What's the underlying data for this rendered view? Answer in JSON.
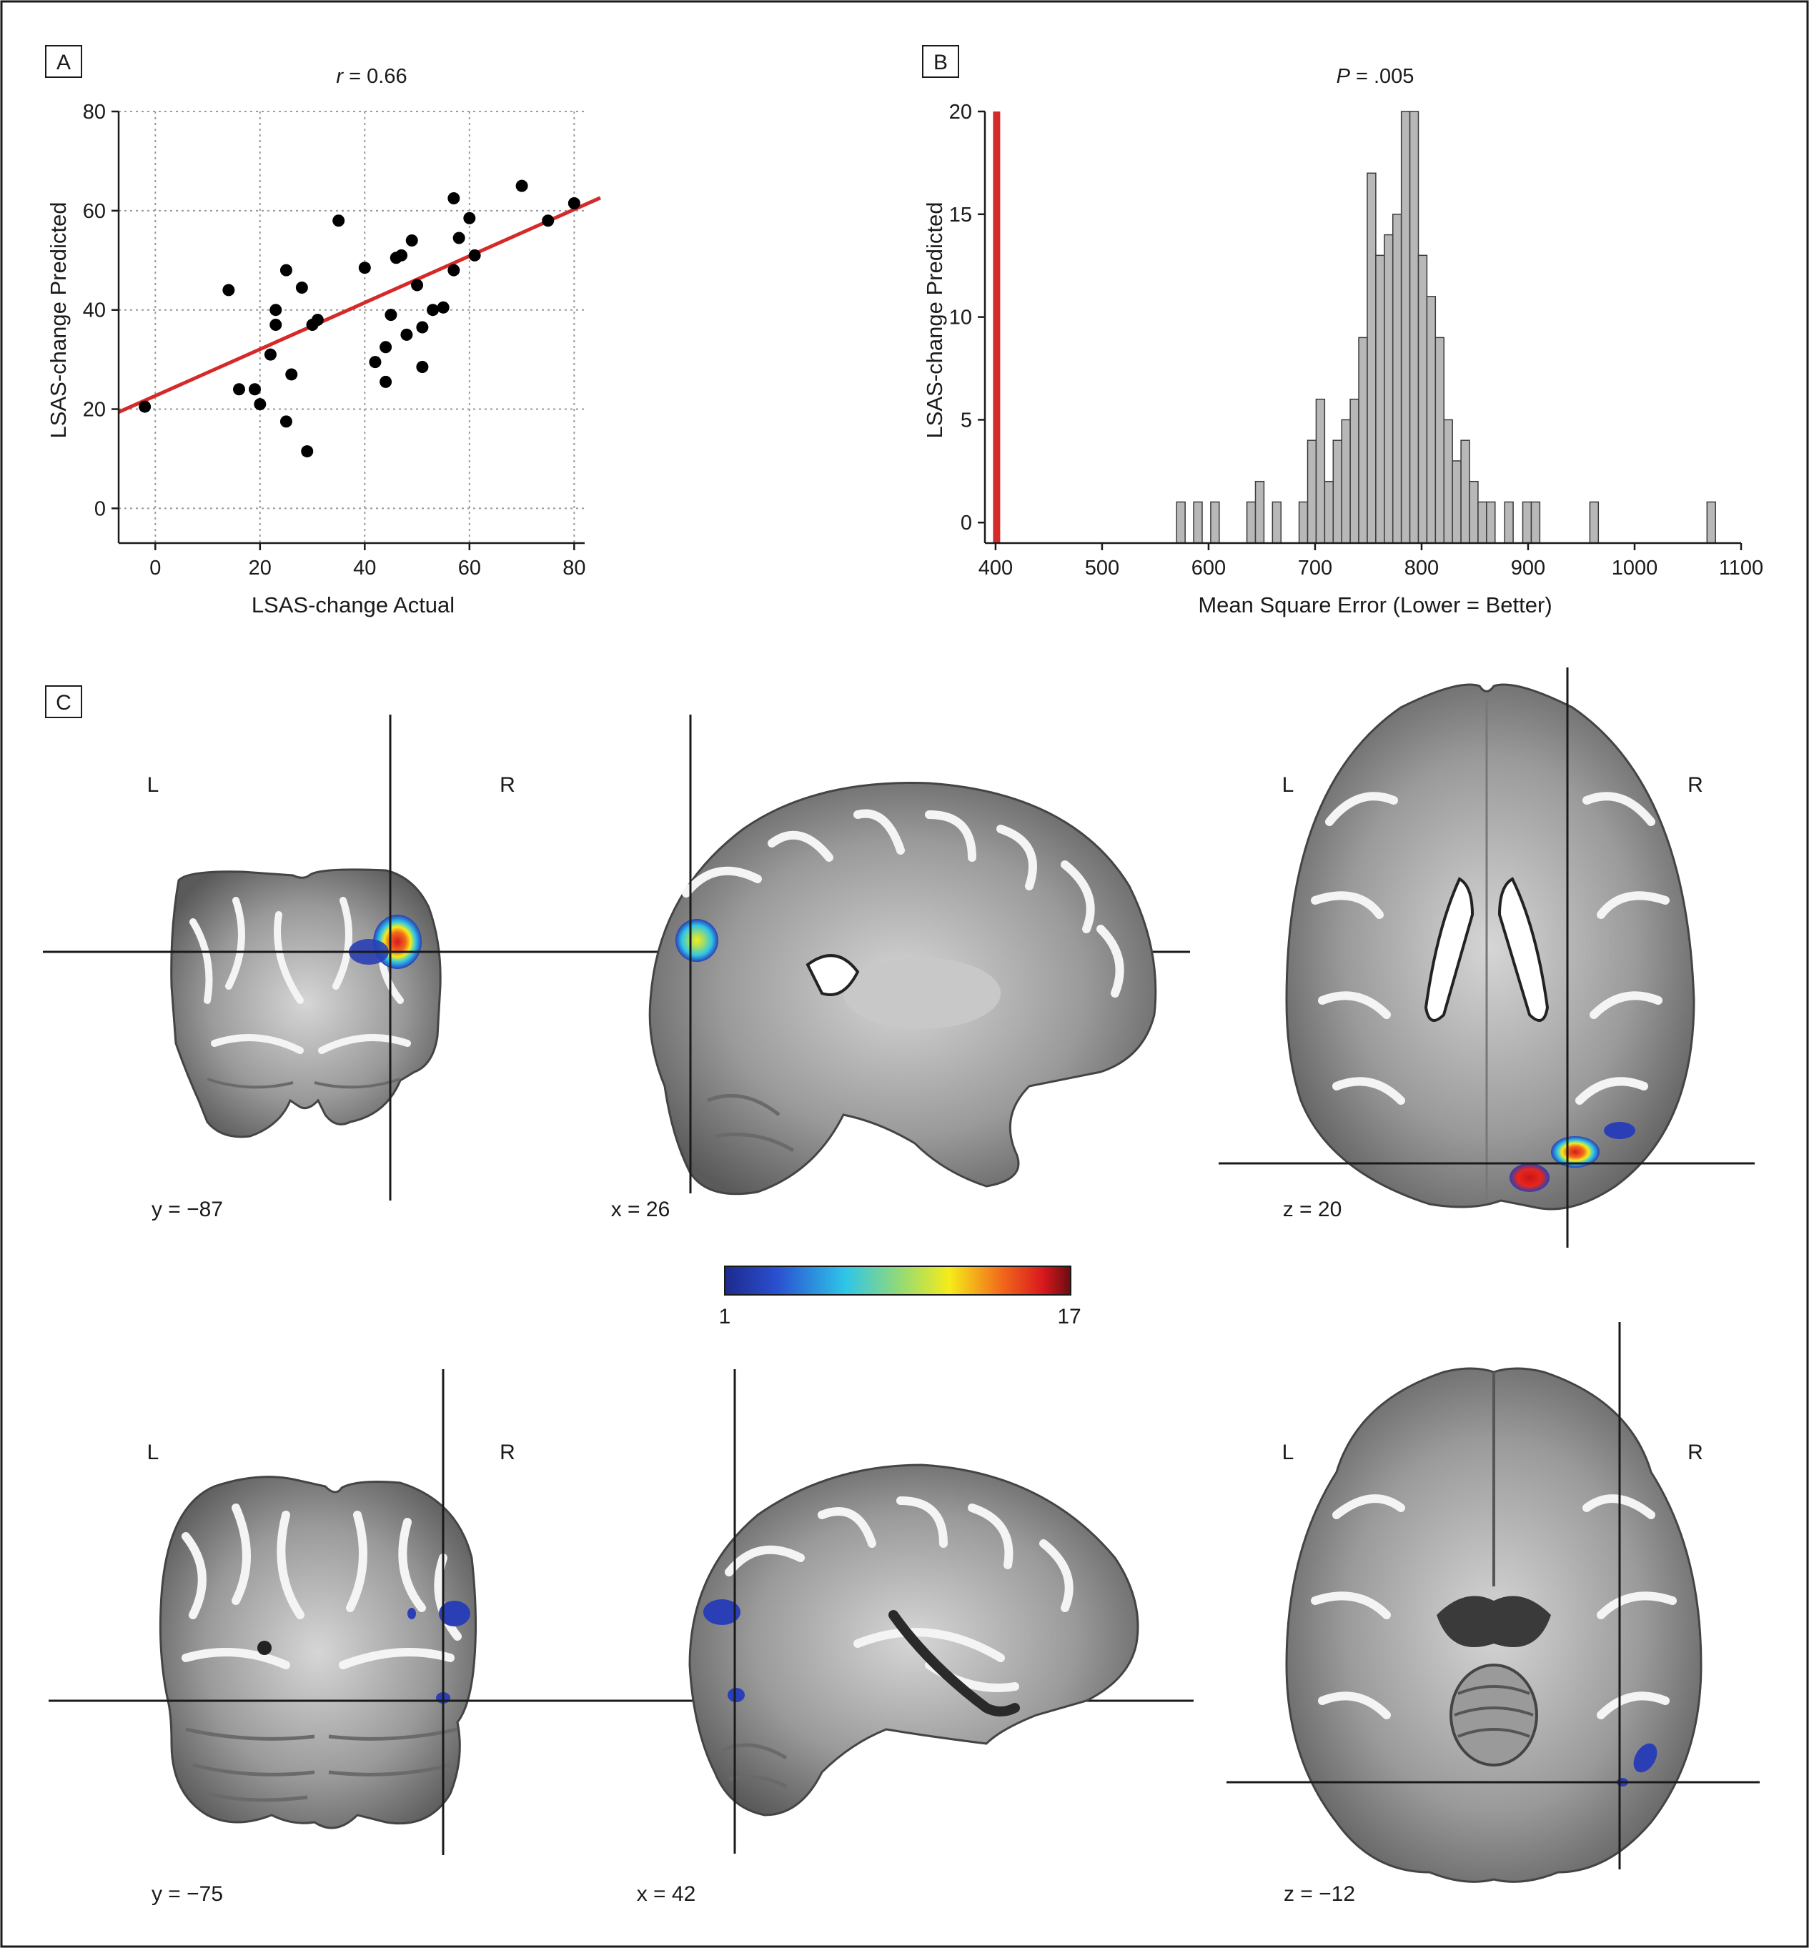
{
  "panel_labels": {
    "a": "A",
    "b": "B",
    "c": "C"
  },
  "chart_data": [
    {
      "type": "scatter",
      "panel": "A",
      "title_italic": "r",
      "title_rest": " = 0.66",
      "xlabel": "LSAS-change Actual",
      "ylabel": "LSAS-change Predicted",
      "xlim": [
        -7,
        82
      ],
      "ylim": [
        -7,
        80
      ],
      "xticks": [
        0,
        20,
        40,
        60,
        80
      ],
      "yticks": [
        0,
        20,
        40,
        60,
        80
      ],
      "grid": true,
      "line_color": "#d42a2a",
      "point_color": "#000000",
      "regression_line": {
        "x": [
          -7,
          85
        ],
        "y": [
          19.4,
          62.6
        ]
      },
      "points": [
        [
          -2,
          20.5
        ],
        [
          14,
          44
        ],
        [
          16,
          24
        ],
        [
          19,
          24
        ],
        [
          20,
          21
        ],
        [
          22,
          31
        ],
        [
          23,
          40
        ],
        [
          23,
          37
        ],
        [
          25,
          48
        ],
        [
          25,
          17.5
        ],
        [
          26,
          27
        ],
        [
          28,
          44.5
        ],
        [
          29,
          11.5
        ],
        [
          30,
          37
        ],
        [
          31,
          38
        ],
        [
          35,
          58
        ],
        [
          40,
          48.5
        ],
        [
          42,
          29.5
        ],
        [
          44,
          32.5
        ],
        [
          44,
          25.5
        ],
        [
          45,
          39
        ],
        [
          46,
          50.5
        ],
        [
          47,
          51
        ],
        [
          48,
          35
        ],
        [
          49,
          54
        ],
        [
          50,
          45
        ],
        [
          51,
          36.5
        ],
        [
          51,
          28.5
        ],
        [
          53,
          40
        ],
        [
          55,
          40.5
        ],
        [
          57,
          48
        ],
        [
          57,
          62.5
        ],
        [
          58,
          54.5
        ],
        [
          60,
          58.5
        ],
        [
          61,
          51
        ],
        [
          70,
          65
        ],
        [
          75,
          58
        ],
        [
          80,
          61.5
        ]
      ]
    },
    {
      "type": "bar",
      "subtype": "histogram",
      "panel": "B",
      "title_italic": "P",
      "title_rest": " = .005",
      "xlabel": "Mean Square Error (Lower = Better)",
      "ylabel": "LSAS-change Predicted",
      "xlim": [
        390,
        1100
      ],
      "ylim": [
        -1,
        20
      ],
      "xticks": [
        400,
        500,
        600,
        700,
        800,
        900,
        1000,
        1100
      ],
      "yticks": [
        0,
        5,
        10,
        15,
        20
      ],
      "bar_color": "#b8b8b8",
      "observed_line": {
        "x": 401,
        "color": "#d42a2a"
      },
      "bins": [
        {
          "x0": 570,
          "x1": 578,
          "count": 1
        },
        {
          "x0": 586,
          "x1": 594,
          "count": 1
        },
        {
          "x0": 602,
          "x1": 610,
          "count": 1
        },
        {
          "x0": 636,
          "x1": 644,
          "count": 1
        },
        {
          "x0": 644,
          "x1": 652,
          "count": 2
        },
        {
          "x0": 660,
          "x1": 668,
          "count": 1
        },
        {
          "x0": 685,
          "x1": 693,
          "count": 1
        },
        {
          "x0": 693,
          "x1": 701,
          "count": 4
        },
        {
          "x0": 701,
          "x1": 709,
          "count": 6
        },
        {
          "x0": 709,
          "x1": 717,
          "count": 2
        },
        {
          "x0": 717,
          "x1": 725,
          "count": 4
        },
        {
          "x0": 725,
          "x1": 733,
          "count": 5
        },
        {
          "x0": 733,
          "x1": 741,
          "count": 6
        },
        {
          "x0": 741,
          "x1": 749,
          "count": 9
        },
        {
          "x0": 749,
          "x1": 757,
          "count": 17
        },
        {
          "x0": 757,
          "x1": 765,
          "count": 13
        },
        {
          "x0": 765,
          "x1": 773,
          "count": 14
        },
        {
          "x0": 773,
          "x1": 781,
          "count": 15
        },
        {
          "x0": 781,
          "x1": 789,
          "count": 20
        },
        {
          "x0": 789,
          "x1": 797,
          "count": 20
        },
        {
          "x0": 797,
          "x1": 805,
          "count": 13
        },
        {
          "x0": 805,
          "x1": 813,
          "count": 11
        },
        {
          "x0": 813,
          "x1": 821,
          "count": 9
        },
        {
          "x0": 821,
          "x1": 829,
          "count": 5
        },
        {
          "x0": 829,
          "x1": 837,
          "count": 3
        },
        {
          "x0": 837,
          "x1": 845,
          "count": 4
        },
        {
          "x0": 845,
          "x1": 853,
          "count": 2
        },
        {
          "x0": 853,
          "x1": 861,
          "count": 1
        },
        {
          "x0": 861,
          "x1": 869,
          "count": 1
        },
        {
          "x0": 878,
          "x1": 886,
          "count": 1
        },
        {
          "x0": 895,
          "x1": 903,
          "count": 1
        },
        {
          "x0": 903,
          "x1": 911,
          "count": 1
        },
        {
          "x0": 958,
          "x1": 966,
          "count": 1
        },
        {
          "x0": 1068,
          "x1": 1076,
          "count": 1
        }
      ]
    }
  ],
  "panel_c": {
    "side_left": "L",
    "side_right": "R",
    "colorbar": {
      "min_label": "1",
      "max_label": "17"
    },
    "slices_row1": [
      {
        "view": "coronal",
        "coord": "y = −87"
      },
      {
        "view": "sagittal",
        "coord": "x = 26"
      },
      {
        "view": "axial",
        "coord": "z = 20"
      }
    ],
    "slices_row2": [
      {
        "view": "coronal",
        "coord": "y = −75"
      },
      {
        "view": "sagittal",
        "coord": "x = 42"
      },
      {
        "view": "axial",
        "coord": "z = −12"
      }
    ]
  }
}
